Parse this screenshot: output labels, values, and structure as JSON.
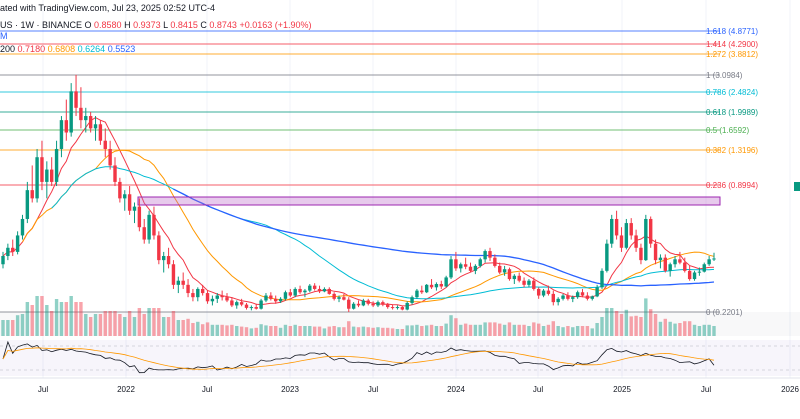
{
  "header": {
    "line1_parts": [
      "ated with TradingView.com, Jul 23, 2025 02:52 UTC-4"
    ],
    "line2_parts": [
      "US · 1W · BINANCE  O",
      "0.8580",
      "H",
      "0.9373",
      "L",
      "0.8415",
      "C",
      "0.8743",
      "+0.0163 (+1.90%)"
    ],
    "line3": "M",
    "ma_prefix": "200",
    "ma_values": [
      "0.7180",
      "0.6808",
      "0.6264",
      "0.5523"
    ]
  },
  "colors": {
    "up": "#089981",
    "down": "#f23645",
    "ma_red": "#f23645",
    "ma_orange": "#ff9800",
    "ma_cyan": "#00bcd4",
    "ma_blue": "#2962ff",
    "rsi": "#7e57c2",
    "box": "#9c27b0"
  },
  "chart_data": {
    "type": "candlestick",
    "x_ticks": [
      "Jul",
      "2022",
      "Jul",
      "2023",
      "Jul",
      "2024",
      "Jul",
      "2025",
      "Jul",
      "2026"
    ],
    "fib_levels": [
      {
        "label": "1.618 (4.8771)",
        "color": "#2962ff"
      },
      {
        "label": "1.414 (4.2900)",
        "color": "#f23645"
      },
      {
        "label": "1.272 (3.8812)",
        "color": "#ff9800"
      },
      {
        "label": "1 (3.0984)",
        "color": "#787b86"
      },
      {
        "label": "0.786 (2.4824)",
        "color": "#00bcd4"
      },
      {
        "label": "0.618 (1.9989)",
        "color": "#089981"
      },
      {
        "label": "0.5 (1.6592)",
        "color": "#4caf50"
      },
      {
        "label": "0.382 (1.3196)",
        "color": "#ff9800"
      },
      {
        "label": "0.236 (0.8994)",
        "color": "#f23645"
      },
      {
        "label": "0 (0.2201)",
        "color": "#787b86"
      }
    ],
    "candles": [
      [
        0.8,
        0.95,
        0.75,
        0.9
      ],
      [
        0.9,
        1.05,
        0.85,
        1.0
      ],
      [
        1.0,
        1.1,
        0.9,
        0.95
      ],
      [
        0.95,
        1.2,
        0.92,
        1.15
      ],
      [
        1.15,
        1.4,
        1.1,
        1.35
      ],
      [
        1.35,
        1.8,
        1.3,
        1.7
      ],
      [
        1.7,
        2.0,
        1.55,
        1.6
      ],
      [
        1.6,
        2.2,
        1.55,
        2.1
      ],
      [
        2.1,
        2.3,
        1.7,
        1.8
      ],
      [
        1.8,
        2.05,
        1.6,
        1.95
      ],
      [
        1.95,
        2.1,
        1.75,
        1.8
      ],
      [
        1.8,
        2.3,
        1.75,
        2.2
      ],
      [
        2.2,
        2.6,
        2.1,
        2.55
      ],
      [
        2.55,
        2.8,
        2.3,
        2.4
      ],
      [
        2.4,
        3.0,
        2.35,
        2.9
      ],
      [
        2.9,
        3.1,
        2.6,
        2.7
      ],
      [
        2.7,
        2.95,
        2.45,
        2.55
      ],
      [
        2.55,
        2.7,
        2.4,
        2.6
      ],
      [
        2.6,
        2.65,
        2.4,
        2.45
      ],
      [
        2.45,
        2.6,
        2.3,
        2.5
      ],
      [
        2.5,
        2.55,
        2.25,
        2.3
      ],
      [
        2.3,
        2.45,
        2.1,
        2.2
      ],
      [
        2.2,
        2.3,
        1.95,
        2.0
      ],
      [
        2.0,
        2.1,
        1.75,
        1.8
      ],
      [
        1.8,
        1.85,
        1.55,
        1.6
      ],
      [
        1.6,
        1.7,
        1.45,
        1.65
      ],
      [
        1.65,
        1.75,
        1.4,
        1.45
      ],
      [
        1.45,
        1.55,
        1.3,
        1.5
      ],
      [
        1.5,
        1.6,
        1.2,
        1.25
      ],
      [
        1.25,
        1.35,
        1.05,
        1.1
      ],
      [
        1.1,
        1.45,
        1.05,
        1.4
      ],
      [
        1.4,
        1.5,
        1.1,
        1.15
      ],
      [
        1.15,
        1.2,
        0.8,
        0.85
      ],
      [
        0.85,
        0.95,
        0.7,
        0.9
      ],
      [
        0.9,
        1.0,
        0.75,
        0.8
      ],
      [
        0.8,
        0.85,
        0.5,
        0.55
      ],
      [
        0.55,
        0.65,
        0.45,
        0.6
      ],
      [
        0.6,
        0.7,
        0.5,
        0.55
      ],
      [
        0.55,
        0.62,
        0.4,
        0.45
      ],
      [
        0.45,
        0.5,
        0.35,
        0.4
      ],
      [
        0.4,
        0.52,
        0.35,
        0.5
      ],
      [
        0.5,
        0.55,
        0.42,
        0.45
      ],
      [
        0.45,
        0.48,
        0.32,
        0.35
      ],
      [
        0.35,
        0.42,
        0.3,
        0.38
      ],
      [
        0.38,
        0.45,
        0.33,
        0.42
      ],
      [
        0.42,
        0.48,
        0.36,
        0.4
      ],
      [
        0.4,
        0.45,
        0.34,
        0.36
      ],
      [
        0.36,
        0.4,
        0.28,
        0.3
      ],
      [
        0.3,
        0.36,
        0.26,
        0.34
      ],
      [
        0.34,
        0.38,
        0.29,
        0.31
      ],
      [
        0.31,
        0.33,
        0.25,
        0.27
      ],
      [
        0.27,
        0.3,
        0.24,
        0.28
      ],
      [
        0.28,
        0.32,
        0.25,
        0.26
      ],
      [
        0.26,
        0.38,
        0.25,
        0.36
      ],
      [
        0.36,
        0.45,
        0.34,
        0.42
      ],
      [
        0.42,
        0.46,
        0.36,
        0.38
      ],
      [
        0.38,
        0.42,
        0.32,
        0.35
      ],
      [
        0.35,
        0.4,
        0.33,
        0.38
      ],
      [
        0.38,
        0.48,
        0.36,
        0.46
      ],
      [
        0.46,
        0.5,
        0.4,
        0.42
      ],
      [
        0.42,
        0.52,
        0.4,
        0.5
      ],
      [
        0.5,
        0.54,
        0.44,
        0.46
      ],
      [
        0.46,
        0.5,
        0.4,
        0.48
      ],
      [
        0.48,
        0.56,
        0.46,
        0.54
      ],
      [
        0.54,
        0.57,
        0.48,
        0.5
      ],
      [
        0.5,
        0.54,
        0.45,
        0.47
      ],
      [
        0.47,
        0.52,
        0.46,
        0.5
      ],
      [
        0.5,
        0.52,
        0.43,
        0.44
      ],
      [
        0.44,
        0.46,
        0.36,
        0.38
      ],
      [
        0.38,
        0.42,
        0.34,
        0.4
      ],
      [
        0.4,
        0.44,
        0.36,
        0.37
      ],
      [
        0.37,
        0.4,
        0.22,
        0.26
      ],
      [
        0.26,
        0.34,
        0.25,
        0.32
      ],
      [
        0.32,
        0.36,
        0.28,
        0.3
      ],
      [
        0.3,
        0.38,
        0.29,
        0.36
      ],
      [
        0.36,
        0.38,
        0.3,
        0.32
      ],
      [
        0.32,
        0.35,
        0.28,
        0.3
      ],
      [
        0.3,
        0.36,
        0.28,
        0.34
      ],
      [
        0.34,
        0.36,
        0.29,
        0.31
      ],
      [
        0.31,
        0.33,
        0.26,
        0.28
      ],
      [
        0.28,
        0.31,
        0.25,
        0.27
      ],
      [
        0.27,
        0.3,
        0.25,
        0.28
      ],
      [
        0.28,
        0.29,
        0.24,
        0.25
      ],
      [
        0.25,
        0.35,
        0.24,
        0.33
      ],
      [
        0.33,
        0.42,
        0.31,
        0.4
      ],
      [
        0.4,
        0.5,
        0.38,
        0.48
      ],
      [
        0.48,
        0.54,
        0.44,
        0.46
      ],
      [
        0.46,
        0.56,
        0.45,
        0.55
      ],
      [
        0.55,
        0.62,
        0.5,
        0.52
      ],
      [
        0.52,
        0.58,
        0.48,
        0.56
      ],
      [
        0.56,
        0.6,
        0.5,
        0.53
      ],
      [
        0.53,
        0.66,
        0.52,
        0.64
      ],
      [
        0.64,
        0.9,
        0.62,
        0.86
      ],
      [
        0.86,
        0.95,
        0.72,
        0.75
      ],
      [
        0.75,
        0.82,
        0.7,
        0.8
      ],
      [
        0.8,
        0.88,
        0.74,
        0.77
      ],
      [
        0.77,
        0.82,
        0.7,
        0.72
      ],
      [
        0.72,
        0.8,
        0.68,
        0.78
      ],
      [
        0.78,
        0.88,
        0.76,
        0.86
      ],
      [
        0.86,
        0.98,
        0.82,
        0.96
      ],
      [
        0.96,
        1.0,
        0.84,
        0.88
      ],
      [
        0.88,
        0.92,
        0.76,
        0.78
      ],
      [
        0.78,
        0.82,
        0.68,
        0.7
      ],
      [
        0.7,
        0.78,
        0.66,
        0.74
      ],
      [
        0.74,
        0.76,
        0.6,
        0.62
      ],
      [
        0.62,
        0.68,
        0.56,
        0.66
      ],
      [
        0.66,
        0.7,
        0.58,
        0.6
      ],
      [
        0.6,
        0.64,
        0.52,
        0.55
      ],
      [
        0.55,
        0.62,
        0.52,
        0.6
      ],
      [
        0.6,
        0.64,
        0.48,
        0.5
      ],
      [
        0.5,
        0.52,
        0.38,
        0.42
      ],
      [
        0.42,
        0.5,
        0.4,
        0.48
      ],
      [
        0.48,
        0.54,
        0.42,
        0.44
      ],
      [
        0.44,
        0.48,
        0.3,
        0.34
      ],
      [
        0.34,
        0.4,
        0.3,
        0.38
      ],
      [
        0.38,
        0.44,
        0.36,
        0.42
      ],
      [
        0.42,
        0.46,
        0.36,
        0.38
      ],
      [
        0.38,
        0.42,
        0.34,
        0.4
      ],
      [
        0.4,
        0.48,
        0.38,
        0.46
      ],
      [
        0.46,
        0.5,
        0.4,
        0.42
      ],
      [
        0.42,
        0.46,
        0.36,
        0.38
      ],
      [
        0.38,
        0.42,
        0.36,
        0.41
      ],
      [
        0.41,
        0.55,
        0.4,
        0.52
      ],
      [
        0.52,
        0.75,
        0.5,
        0.72
      ],
      [
        0.72,
        1.1,
        0.7,
        1.05
      ],
      [
        1.05,
        1.4,
        1.0,
        1.35
      ],
      [
        1.35,
        1.45,
        1.1,
        1.15
      ],
      [
        1.15,
        1.25,
        0.95,
        1.0
      ],
      [
        1.0,
        1.35,
        0.98,
        1.3
      ],
      [
        1.3,
        1.36,
        1.1,
        1.15
      ],
      [
        1.15,
        1.22,
        0.95,
        1.0
      ],
      [
        1.0,
        1.05,
        0.8,
        0.85
      ],
      [
        0.85,
        1.4,
        0.84,
        1.35
      ],
      [
        1.35,
        1.38,
        1.0,
        1.05
      ],
      [
        1.05,
        1.1,
        0.8,
        0.85
      ],
      [
        0.85,
        0.92,
        0.75,
        0.88
      ],
      [
        0.88,
        0.92,
        0.7,
        0.72
      ],
      [
        0.72,
        0.82,
        0.65,
        0.8
      ],
      [
        0.8,
        0.9,
        0.76,
        0.86
      ],
      [
        0.86,
        0.95,
        0.8,
        0.82
      ],
      [
        0.82,
        0.88,
        0.7,
        0.72
      ],
      [
        0.72,
        0.78,
        0.6,
        0.62
      ],
      [
        0.62,
        0.72,
        0.6,
        0.7
      ],
      [
        0.7,
        0.76,
        0.66,
        0.71
      ],
      [
        0.71,
        0.82,
        0.7,
        0.8
      ],
      [
        0.8,
        0.9,
        0.78,
        0.86
      ],
      [
        0.86,
        0.94,
        0.84,
        0.87
      ]
    ]
  }
}
